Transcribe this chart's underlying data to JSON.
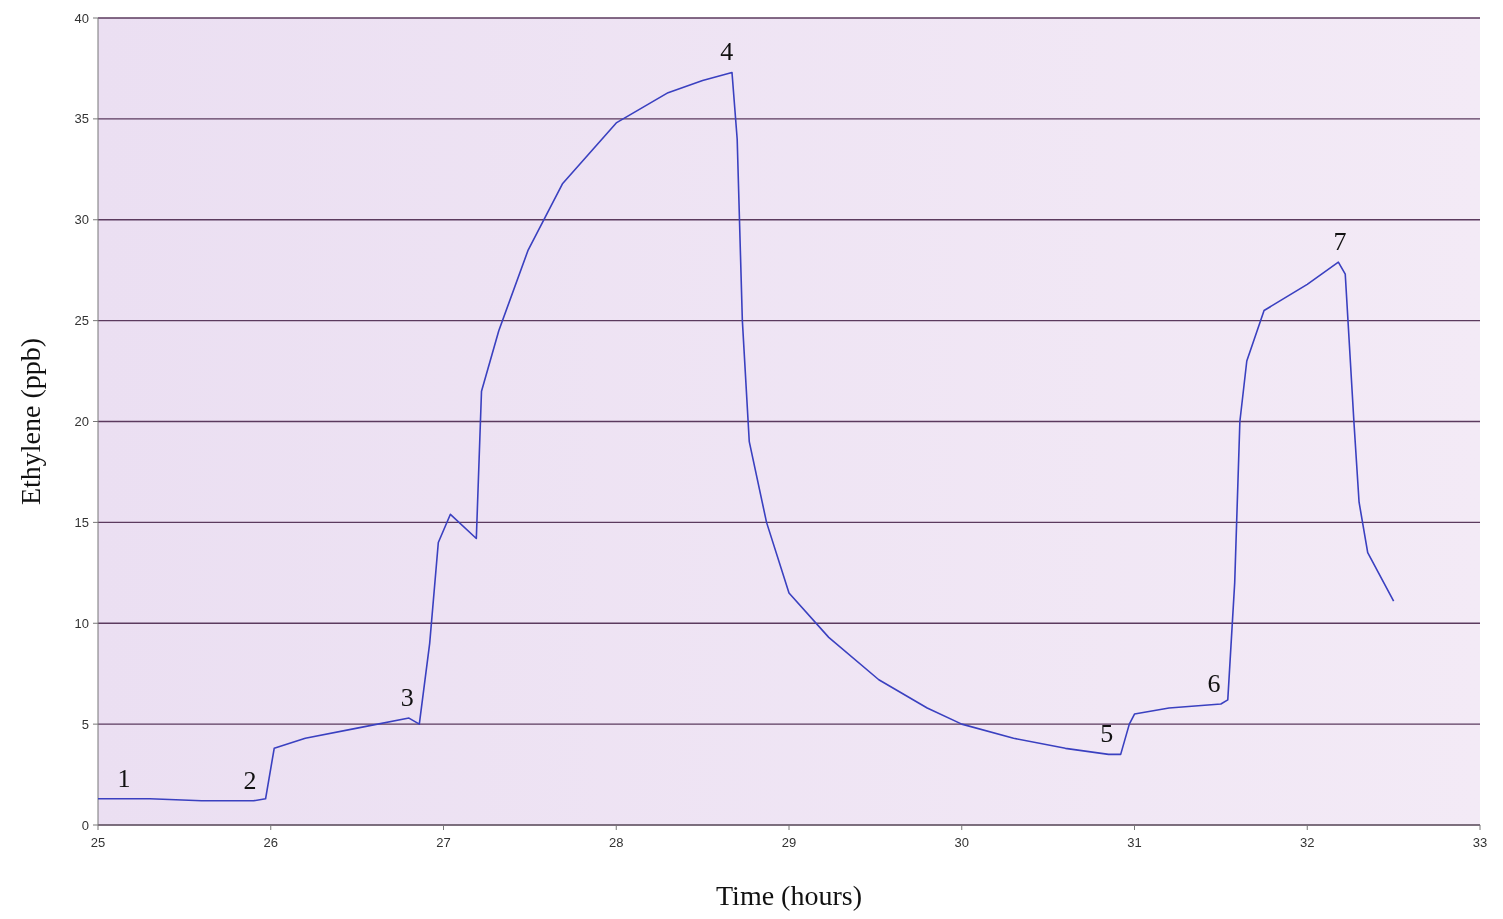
{
  "chart_data": {
    "type": "line",
    "xlabel": "Time (hours)",
    "ylabel": "Ethylene (ppb)",
    "xlim": [
      25,
      33
    ],
    "xticks": [
      25,
      26,
      27,
      28,
      29,
      30,
      31,
      32,
      33
    ],
    "ylim": [
      0,
      40
    ],
    "yticks": [
      0,
      5,
      10,
      15,
      20,
      25,
      30,
      35,
      40
    ],
    "grid": "y",
    "marker": "none",
    "line_style": "solid",
    "series": [
      {
        "color": "#3a40c0",
        "x": [
          25,
          25.3,
          25.6,
          25.9,
          25.97,
          26.02,
          26.2,
          26.5,
          26.8,
          26.86,
          26.92,
          26.97,
          27.04,
          27.19,
          27.22,
          27.32,
          27.49,
          27.69,
          28.0,
          28.3,
          28.5,
          28.67,
          28.7,
          28.73,
          28.77,
          28.87,
          29.0,
          29.23,
          29.52,
          29.8,
          30.0,
          30.3,
          30.6,
          30.85,
          30.92,
          30.97,
          31.0,
          31.2,
          31.5,
          31.54,
          31.58,
          31.61,
          31.65,
          31.75,
          32.0,
          32.18,
          32.22,
          32.27,
          32.3,
          32.35,
          32.5
        ],
        "values": [
          1.3,
          1.3,
          1.2,
          1.2,
          1.3,
          3.8,
          4.3,
          4.8,
          5.3,
          5.0,
          9,
          14,
          15.4,
          14.2,
          21.5,
          24.5,
          28.5,
          31.8,
          34.8,
          36.3,
          36.9,
          37.3,
          34,
          25,
          19,
          15,
          11.5,
          9.3,
          7.2,
          5.8,
          5.0,
          4.3,
          3.8,
          3.5,
          3.5,
          5.0,
          5.5,
          5.8,
          6.0,
          6.2,
          12,
          20,
          23,
          25.5,
          26.8,
          27.9,
          27.3,
          20,
          16,
          13.5,
          11.1
        ]
      }
    ],
    "annotations": [
      {
        "text": "1",
        "x": 25.15,
        "y": 1.3
      },
      {
        "text": "2",
        "x": 25.88,
        "y": 1.2
      },
      {
        "text": "3",
        "x": 26.79,
        "y": 5.3
      },
      {
        "text": "4",
        "x": 28.64,
        "y": 37.3
      },
      {
        "text": "5",
        "x": 30.84,
        "y": 3.5
      },
      {
        "text": "6",
        "x": 31.46,
        "y": 6.0
      },
      {
        "text": "7",
        "x": 32.19,
        "y": 27.9
      }
    ]
  }
}
